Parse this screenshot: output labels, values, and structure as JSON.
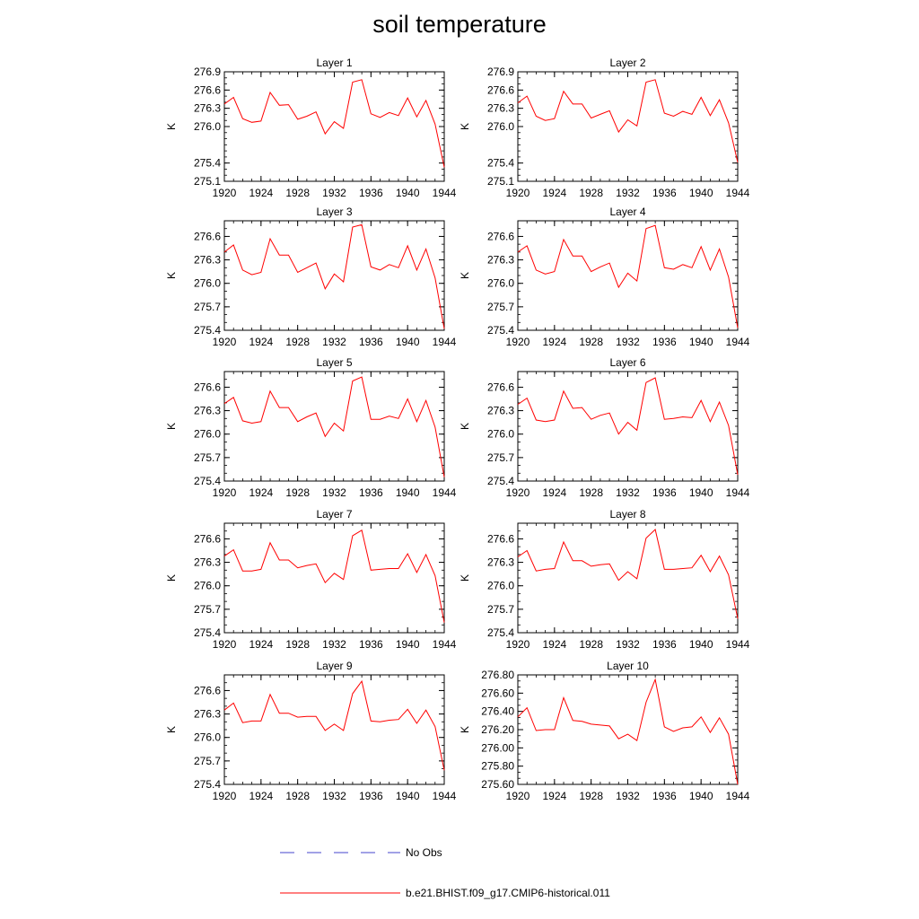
{
  "title": "soil temperature",
  "colors": {
    "model_line": "#ff0000",
    "obs_line": "#4444cc",
    "axis": "#000000"
  },
  "legend": {
    "obs_label": "No Obs",
    "model_label": "b.e21.BHIST.f09_g17.CMIP6-historical.011"
  },
  "chart_data": [
    {
      "type": "line",
      "title": "Layer 1",
      "ylabel": "K",
      "xlabel": "",
      "xlim": [
        1920,
        1944
      ],
      "ylim": [
        275.1,
        276.9
      ],
      "xticks": [
        "1920",
        "1924",
        "1928",
        "1932",
        "1936",
        "1940",
        "1944"
      ],
      "yticks": [
        "275.1",
        "275.4",
        "276.0",
        "276.3",
        "276.6",
        "276.9"
      ],
      "x": [
        1920,
        1921,
        1922,
        1923,
        1924,
        1925,
        1926,
        1927,
        1928,
        1929,
        1930,
        1931,
        1932,
        1933,
        1934,
        1935,
        1936,
        1937,
        1938,
        1939,
        1940,
        1941,
        1942,
        1943,
        1944
      ],
      "series": [
        {
          "values": [
            276.37,
            276.48,
            276.13,
            276.07,
            276.09,
            276.56,
            276.35,
            276.36,
            276.12,
            276.17,
            276.24,
            275.88,
            276.08,
            275.97,
            276.73,
            276.77,
            276.21,
            276.15,
            276.23,
            276.18,
            276.47,
            276.16,
            276.43,
            276.04,
            275.33
          ]
        }
      ]
    },
    {
      "type": "line",
      "title": "Layer 2",
      "ylabel": "K",
      "xlabel": "",
      "xlim": [
        1920,
        1944
      ],
      "ylim": [
        275.1,
        276.9
      ],
      "xticks": [
        "1920",
        "1924",
        "1928",
        "1932",
        "1936",
        "1940",
        "1944"
      ],
      "yticks": [
        "275.1",
        "275.4",
        "276.0",
        "276.3",
        "276.6",
        "276.9"
      ],
      "x": [
        1920,
        1921,
        1922,
        1923,
        1924,
        1925,
        1926,
        1927,
        1928,
        1929,
        1930,
        1931,
        1932,
        1933,
        1934,
        1935,
        1936,
        1937,
        1938,
        1939,
        1940,
        1941,
        1942,
        1943,
        1944
      ],
      "series": [
        {
          "values": [
            276.39,
            276.5,
            276.17,
            276.1,
            276.13,
            276.58,
            276.37,
            276.37,
            276.14,
            276.2,
            276.26,
            275.91,
            276.11,
            276.01,
            276.73,
            276.77,
            276.22,
            276.17,
            276.25,
            276.2,
            276.48,
            276.18,
            276.44,
            276.06,
            275.41
          ]
        }
      ]
    },
    {
      "type": "line",
      "title": "Layer 3",
      "ylabel": "K",
      "xlabel": "",
      "xlim": [
        1920,
        1944
      ],
      "ylim": [
        275.4,
        276.8
      ],
      "xticks": [
        "1920",
        "1924",
        "1928",
        "1932",
        "1936",
        "1940",
        "1944"
      ],
      "yticks": [
        "275.4",
        "275.7",
        "276.0",
        "276.3",
        "276.6"
      ],
      "x": [
        1920,
        1921,
        1922,
        1923,
        1924,
        1925,
        1926,
        1927,
        1928,
        1929,
        1930,
        1931,
        1932,
        1933,
        1934,
        1935,
        1936,
        1937,
        1938,
        1939,
        1940,
        1941,
        1942,
        1943,
        1944
      ],
      "series": [
        {
          "values": [
            276.4,
            276.49,
            276.17,
            276.11,
            276.14,
            276.57,
            276.36,
            276.36,
            276.14,
            276.2,
            276.26,
            275.93,
            276.12,
            276.02,
            276.72,
            276.75,
            276.21,
            276.17,
            276.24,
            276.2,
            276.48,
            276.17,
            276.44,
            276.07,
            275.42
          ]
        }
      ]
    },
    {
      "type": "line",
      "title": "Layer 4",
      "ylabel": "K",
      "xlabel": "",
      "xlim": [
        1920,
        1944
      ],
      "ylim": [
        275.4,
        276.8
      ],
      "xticks": [
        "1920",
        "1924",
        "1928",
        "1932",
        "1936",
        "1940",
        "1944"
      ],
      "yticks": [
        "275.4",
        "275.7",
        "276.0",
        "276.3",
        "276.6"
      ],
      "x": [
        1920,
        1921,
        1922,
        1923,
        1924,
        1925,
        1926,
        1927,
        1928,
        1929,
        1930,
        1931,
        1932,
        1933,
        1934,
        1935,
        1936,
        1937,
        1938,
        1939,
        1940,
        1941,
        1942,
        1943,
        1944
      ],
      "series": [
        {
          "values": [
            276.4,
            276.48,
            276.17,
            276.12,
            276.15,
            276.56,
            276.35,
            276.35,
            276.15,
            276.21,
            276.26,
            275.95,
            276.13,
            276.03,
            276.7,
            276.74,
            276.2,
            276.18,
            276.24,
            276.2,
            276.47,
            276.17,
            276.44,
            276.08,
            275.43
          ]
        }
      ]
    },
    {
      "type": "line",
      "title": "Layer 5",
      "ylabel": "K",
      "xlabel": "",
      "xlim": [
        1920,
        1944
      ],
      "ylim": [
        275.4,
        276.8
      ],
      "xticks": [
        "1920",
        "1924",
        "1928",
        "1932",
        "1936",
        "1940",
        "1944"
      ],
      "yticks": [
        "275.4",
        "275.7",
        "276.0",
        "276.3",
        "276.6"
      ],
      "x": [
        1920,
        1921,
        1922,
        1923,
        1924,
        1925,
        1926,
        1927,
        1928,
        1929,
        1930,
        1931,
        1932,
        1933,
        1934,
        1935,
        1936,
        1937,
        1938,
        1939,
        1940,
        1941,
        1942,
        1943,
        1944
      ],
      "series": [
        {
          "values": [
            276.39,
            276.47,
            276.17,
            276.14,
            276.16,
            276.55,
            276.34,
            276.34,
            276.16,
            276.22,
            276.27,
            275.97,
            276.14,
            276.04,
            276.68,
            276.73,
            276.19,
            276.19,
            276.23,
            276.2,
            276.45,
            276.16,
            276.43,
            276.09,
            275.45
          ]
        }
      ]
    },
    {
      "type": "line",
      "title": "Layer 6",
      "ylabel": "K",
      "xlabel": "",
      "xlim": [
        1920,
        1944
      ],
      "ylim": [
        275.4,
        276.8
      ],
      "xticks": [
        "1920",
        "1924",
        "1928",
        "1932",
        "1936",
        "1940",
        "1944"
      ],
      "yticks": [
        "275.4",
        "275.7",
        "276.0",
        "276.3",
        "276.6"
      ],
      "x": [
        1920,
        1921,
        1922,
        1923,
        1924,
        1925,
        1926,
        1927,
        1928,
        1929,
        1930,
        1931,
        1932,
        1933,
        1934,
        1935,
        1936,
        1937,
        1938,
        1939,
        1940,
        1941,
        1942,
        1943,
        1944
      ],
      "series": [
        {
          "values": [
            276.38,
            276.46,
            276.18,
            276.16,
            276.18,
            276.55,
            276.33,
            276.34,
            276.19,
            276.24,
            276.27,
            276.0,
            276.15,
            276.05,
            276.66,
            276.72,
            276.19,
            276.2,
            276.22,
            276.21,
            276.43,
            276.16,
            276.41,
            276.11,
            275.48
          ]
        }
      ]
    },
    {
      "type": "line",
      "title": "Layer 7",
      "ylabel": "K",
      "xlabel": "",
      "xlim": [
        1920,
        1944
      ],
      "ylim": [
        275.4,
        276.8
      ],
      "xticks": [
        "1920",
        "1924",
        "1928",
        "1932",
        "1936",
        "1940",
        "1944"
      ],
      "yticks": [
        "275.4",
        "275.7",
        "276.0",
        "276.3",
        "276.6"
      ],
      "x": [
        1920,
        1921,
        1922,
        1923,
        1924,
        1925,
        1926,
        1927,
        1928,
        1929,
        1930,
        1931,
        1932,
        1933,
        1934,
        1935,
        1936,
        1937,
        1938,
        1939,
        1940,
        1941,
        1942,
        1943,
        1944
      ],
      "series": [
        {
          "values": [
            276.38,
            276.46,
            276.19,
            276.19,
            276.21,
            276.55,
            276.33,
            276.33,
            276.23,
            276.26,
            276.28,
            276.04,
            276.16,
            276.08,
            276.64,
            276.71,
            276.2,
            276.21,
            276.22,
            276.22,
            276.41,
            276.17,
            276.4,
            276.13,
            275.53
          ]
        }
      ]
    },
    {
      "type": "line",
      "title": "Layer 8",
      "ylabel": "K",
      "xlabel": "",
      "xlim": [
        1920,
        1944
      ],
      "ylim": [
        275.4,
        276.8
      ],
      "xticks": [
        "1920",
        "1924",
        "1928",
        "1932",
        "1936",
        "1940",
        "1944"
      ],
      "yticks": [
        "275.4",
        "275.7",
        "276.0",
        "276.3",
        "276.6"
      ],
      "x": [
        1920,
        1921,
        1922,
        1923,
        1924,
        1925,
        1926,
        1927,
        1928,
        1929,
        1930,
        1931,
        1932,
        1933,
        1934,
        1935,
        1936,
        1937,
        1938,
        1939,
        1940,
        1941,
        1942,
        1943,
        1944
      ],
      "series": [
        {
          "values": [
            276.37,
            276.45,
            276.19,
            276.21,
            276.22,
            276.56,
            276.32,
            276.32,
            276.25,
            276.27,
            276.28,
            276.07,
            276.18,
            276.09,
            276.61,
            276.72,
            276.21,
            276.21,
            276.22,
            276.23,
            276.39,
            276.18,
            276.38,
            276.14,
            275.58
          ]
        }
      ]
    },
    {
      "type": "line",
      "title": "Layer 9",
      "ylabel": "K",
      "xlabel": "",
      "xlim": [
        1920,
        1944
      ],
      "ylim": [
        275.4,
        276.8
      ],
      "xticks": [
        "1920",
        "1924",
        "1928",
        "1932",
        "1936",
        "1940",
        "1944"
      ],
      "yticks": [
        "275.4",
        "275.7",
        "276.0",
        "276.3",
        "276.6"
      ],
      "x": [
        1920,
        1921,
        1922,
        1923,
        1924,
        1925,
        1926,
        1927,
        1928,
        1929,
        1930,
        1931,
        1932,
        1933,
        1934,
        1935,
        1936,
        1937,
        1938,
        1939,
        1940,
        1941,
        1942,
        1943,
        1944
      ],
      "series": [
        {
          "values": [
            276.35,
            276.44,
            276.19,
            276.21,
            276.21,
            276.55,
            276.31,
            276.31,
            276.26,
            276.27,
            276.27,
            276.09,
            276.17,
            276.09,
            276.56,
            276.72,
            276.21,
            276.2,
            276.22,
            276.23,
            276.36,
            276.18,
            276.35,
            276.14,
            275.58
          ]
        }
      ]
    },
    {
      "type": "line",
      "title": "Layer 10",
      "ylabel": "K",
      "xlabel": "",
      "xlim": [
        1920,
        1944
      ],
      "ylim": [
        275.6,
        276.8
      ],
      "xticks": [
        "1920",
        "1924",
        "1928",
        "1932",
        "1936",
        "1940",
        "1944"
      ],
      "yticks": [
        "275.60",
        "275.80",
        "276.00",
        "276.20",
        "276.40",
        "276.60",
        "276.80"
      ],
      "x": [
        1920,
        1921,
        1922,
        1923,
        1924,
        1925,
        1926,
        1927,
        1928,
        1929,
        1930,
        1931,
        1932,
        1933,
        1934,
        1935,
        1936,
        1937,
        1938,
        1939,
        1940,
        1941,
        1942,
        1943,
        1944
      ],
      "series": [
        {
          "values": [
            276.34,
            276.44,
            276.19,
            276.2,
            276.2,
            276.55,
            276.3,
            276.29,
            276.26,
            276.25,
            276.24,
            276.1,
            276.15,
            276.08,
            276.5,
            276.75,
            276.23,
            276.18,
            276.22,
            276.23,
            276.34,
            276.17,
            276.33,
            276.15,
            275.6
          ]
        }
      ]
    }
  ]
}
